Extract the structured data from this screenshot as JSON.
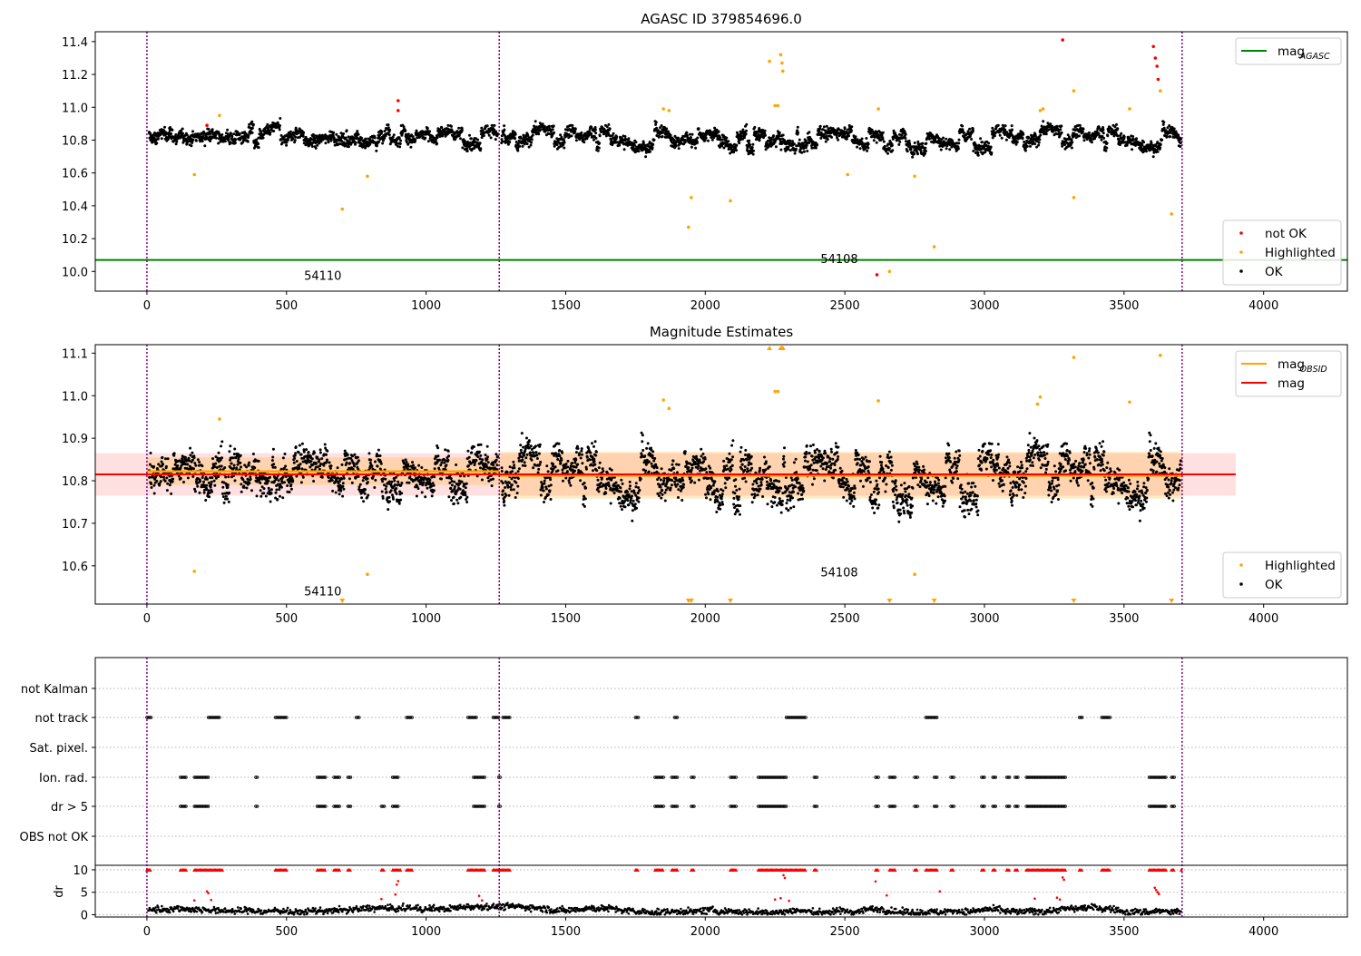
{
  "colors": {
    "ok": "#000000",
    "highlighted": "#ffa500",
    "not_ok": "#ff0000",
    "mag_agasc": "#008000",
    "mag_obsid": "#ffa500",
    "mag": "#ff0000",
    "obsid_boundary": "#800080"
  },
  "chart_data": [
    {
      "type": "scatter",
      "title": "AGASC ID 379854696.0",
      "xlim": [
        -185,
        4300
      ],
      "ylim": [
        9.88,
        11.46
      ],
      "x_ticks": [
        "0",
        "500",
        "1000",
        "1500",
        "2000",
        "2500",
        "3000",
        "3500",
        "4000"
      ],
      "y_ticks": [
        "10.0",
        "10.2",
        "10.4",
        "10.6",
        "10.8",
        "11.0",
        "11.2",
        "11.4"
      ],
      "obsid_boundaries": [
        0,
        1262,
        3708
      ],
      "obsid_labels": [
        {
          "text": "54110",
          "x": 630,
          "y": 9.95
        },
        {
          "text": "54108",
          "x": 2480,
          "y": 10.05
        }
      ],
      "mag_agasc": 10.07,
      "ok_bands": [
        {
          "x": [
            0,
            1262
          ],
          "baseline": 10.82,
          "amplitude": 0.055
        },
        {
          "x": [
            1262,
            3708
          ],
          "baseline": 10.81,
          "amplitude": 0.07
        }
      ],
      "highlighted": [
        {
          "x": 170,
          "y": 10.59
        },
        {
          "x": 260,
          "y": 10.95
        },
        {
          "x": 700,
          "y": 10.38
        },
        {
          "x": 790,
          "y": 10.58
        },
        {
          "x": 1850,
          "y": 10.99
        },
        {
          "x": 1870,
          "y": 10.98
        },
        {
          "x": 1940,
          "y": 10.27
        },
        {
          "x": 1950,
          "y": 10.45
        },
        {
          "x": 2090,
          "y": 10.43
        },
        {
          "x": 2230,
          "y": 11.28
        },
        {
          "x": 2250,
          "y": 11.01
        },
        {
          "x": 2260,
          "y": 11.01
        },
        {
          "x": 2270,
          "y": 11.32
        },
        {
          "x": 2275,
          "y": 11.27
        },
        {
          "x": 2278,
          "y": 11.22
        },
        {
          "x": 2510,
          "y": 10.59
        },
        {
          "x": 2620,
          "y": 10.99
        },
        {
          "x": 2660,
          "y": 10.0
        },
        {
          "x": 2750,
          "y": 10.58
        },
        {
          "x": 2820,
          "y": 10.15
        },
        {
          "x": 3200,
          "y": 10.98
        },
        {
          "x": 3210,
          "y": 10.99
        },
        {
          "x": 3320,
          "y": 11.1
        },
        {
          "x": 3320,
          "y": 10.45
        },
        {
          "x": 3520,
          "y": 10.99
        },
        {
          "x": 3630,
          "y": 11.1
        },
        {
          "x": 3670,
          "y": 10.35
        }
      ],
      "not_ok": [
        {
          "x": 215,
          "y": 10.89
        },
        {
          "x": 900,
          "y": 11.04
        },
        {
          "x": 900,
          "y": 10.98
        },
        {
          "x": 2615,
          "y": 9.98
        },
        {
          "x": 3280,
          "y": 11.41
        },
        {
          "x": 3605,
          "y": 11.37
        },
        {
          "x": 3612,
          "y": 11.3
        },
        {
          "x": 3618,
          "y": 11.25
        },
        {
          "x": 3622,
          "y": 11.17
        }
      ],
      "legends": [
        {
          "placement": "upper right",
          "items": [
            {
              "label": "mag",
              "sub": "AGASC",
              "kind": "line",
              "color_key": "mag_agasc"
            }
          ]
        },
        {
          "placement": "lower right",
          "items": [
            {
              "label": "not OK",
              "kind": "dot",
              "color_key": "not_ok"
            },
            {
              "label": "Highlighted",
              "kind": "dot",
              "color_key": "highlighted"
            },
            {
              "label": "OK",
              "kind": "dot",
              "color_key": "ok"
            }
          ]
        }
      ]
    },
    {
      "type": "scatter",
      "title": "Magnitude Estimates",
      "xlim": [
        -185,
        4300
      ],
      "ylim": [
        10.51,
        11.12
      ],
      "x_ticks": [
        "0",
        "500",
        "1000",
        "1500",
        "2000",
        "2500",
        "3000",
        "3500",
        "4000"
      ],
      "y_ticks": [
        "10.6",
        "10.7",
        "10.8",
        "10.9",
        "11.0",
        "11.1"
      ],
      "obsid_boundaries": [
        0,
        1262,
        3708
      ],
      "obsid_labels": [
        {
          "text": "54110",
          "x": 630,
          "y": 10.53
        },
        {
          "text": "54108",
          "x": 2480,
          "y": 10.575
        }
      ],
      "mag": 10.815,
      "mag_band": [
        10.765,
        10.865
      ],
      "mag_extent": [
        -185,
        3900
      ],
      "mag_obsid": [
        {
          "x": [
            0,
            1262
          ],
          "value": 10.822,
          "band": [
            10.79,
            10.855
          ]
        },
        {
          "x": [
            1262,
            3708
          ],
          "value": 10.812,
          "band": [
            10.758,
            10.868
          ]
        }
      ],
      "highlighted": [
        {
          "x": 170,
          "y": 10.587
        },
        {
          "x": 260,
          "y": 10.945
        },
        {
          "x": 790,
          "y": 10.58
        },
        {
          "x": 1850,
          "y": 10.99
        },
        {
          "x": 1870,
          "y": 10.97
        },
        {
          "x": 2250,
          "y": 11.01
        },
        {
          "x": 2260,
          "y": 11.01
        },
        {
          "x": 2620,
          "y": 10.988
        },
        {
          "x": 2750,
          "y": 10.58
        },
        {
          "x": 3190,
          "y": 10.98
        },
        {
          "x": 3200,
          "y": 10.997
        },
        {
          "x": 3320,
          "y": 11.09
        },
        {
          "x": 3520,
          "y": 10.985
        },
        {
          "x": 3630,
          "y": 11.095
        }
      ],
      "below_range": [
        700,
        1940,
        1950,
        2090,
        2660,
        2820,
        3320,
        3670
      ],
      "above_range": [
        2230,
        2270,
        2275,
        2278
      ],
      "legends": [
        {
          "placement": "upper right",
          "items": [
            {
              "label": "mag",
              "sub": "OBSID",
              "kind": "line",
              "color_key": "mag_obsid"
            },
            {
              "label": "mag",
              "kind": "line",
              "color_key": "mag"
            }
          ]
        },
        {
          "placement": "lower right",
          "items": [
            {
              "label": "Highlighted",
              "kind": "dot",
              "color_key": "highlighted"
            },
            {
              "label": "OK",
              "kind": "dot",
              "color_key": "ok"
            }
          ]
        }
      ]
    },
    {
      "type": "scatter",
      "title": "",
      "xlim": [
        -185,
        4300
      ],
      "x_ticks": [
        "0",
        "500",
        "1000",
        "1500",
        "2000",
        "2500",
        "3000",
        "3500",
        "4000"
      ],
      "obsid_boundaries": [
        0,
        1262,
        3708
      ],
      "flag_rows": [
        "not Kalman",
        "not track",
        "Sat. pixel.",
        "Ion. rad.",
        "dr > 5",
        "OBS not OK"
      ],
      "flag_intervals": {
        "not track": [
          [
            0,
            15
          ],
          [
            220,
            260
          ],
          [
            460,
            500
          ],
          [
            750,
            760
          ],
          [
            930,
            950
          ],
          [
            1150,
            1180
          ],
          [
            1240,
            1260
          ],
          [
            1275,
            1300
          ],
          [
            1750,
            1760
          ],
          [
            1890,
            1900
          ],
          [
            2290,
            2360
          ],
          [
            2790,
            2830
          ],
          [
            3340,
            3350
          ],
          [
            3420,
            3450
          ]
        ],
        "Ion. rad.": [
          [
            120,
            140
          ],
          [
            170,
            220
          ],
          [
            390,
            395
          ],
          [
            610,
            640
          ],
          [
            670,
            690
          ],
          [
            720,
            730
          ],
          [
            880,
            900
          ],
          [
            1170,
            1210
          ],
          [
            1260,
            1265
          ],
          [
            1820,
            1850
          ],
          [
            1880,
            1900
          ],
          [
            1950,
            1960
          ],
          [
            2090,
            2110
          ],
          [
            2190,
            2290
          ],
          [
            2390,
            2400
          ],
          [
            2610,
            2620
          ],
          [
            2660,
            2680
          ],
          [
            2750,
            2760
          ],
          [
            2820,
            2830
          ],
          [
            2880,
            2890
          ],
          [
            2990,
            3000
          ],
          [
            3030,
            3040
          ],
          [
            3080,
            3090
          ],
          [
            3110,
            3120
          ],
          [
            3150,
            3290
          ],
          [
            3590,
            3650
          ],
          [
            3670,
            3680
          ]
        ],
        "dr > 5": [
          [
            120,
            140
          ],
          [
            170,
            220
          ],
          [
            390,
            395
          ],
          [
            610,
            640
          ],
          [
            670,
            690
          ],
          [
            720,
            730
          ],
          [
            840,
            850
          ],
          [
            880,
            900
          ],
          [
            1170,
            1210
          ],
          [
            1260,
            1265
          ],
          [
            1820,
            1850
          ],
          [
            1880,
            1900
          ],
          [
            1950,
            1960
          ],
          [
            2090,
            2110
          ],
          [
            2190,
            2290
          ],
          [
            2390,
            2400
          ],
          [
            2610,
            2620
          ],
          [
            2660,
            2680
          ],
          [
            2750,
            2760
          ],
          [
            2820,
            2830
          ],
          [
            2880,
            2890
          ],
          [
            2990,
            3000
          ],
          [
            3030,
            3040
          ],
          [
            3080,
            3090
          ],
          [
            3110,
            3120
          ],
          [
            3150,
            3290
          ],
          [
            3590,
            3650
          ],
          [
            3670,
            3680
          ]
        ]
      },
      "dr": {
        "ylabel": "dr",
        "y_ticks": [
          "0",
          "5",
          "10"
        ],
        "ylim": [
          -0.5,
          10.8
        ],
        "clip_value": 10,
        "clipped_intervals": [
          [
            0,
            15
          ],
          [
            120,
            140
          ],
          [
            170,
            270
          ],
          [
            460,
            500
          ],
          [
            610,
            640
          ],
          [
            670,
            690
          ],
          [
            720,
            730
          ],
          [
            840,
            850
          ],
          [
            880,
            910
          ],
          [
            930,
            950
          ],
          [
            1150,
            1210
          ],
          [
            1240,
            1300
          ],
          [
            1750,
            1760
          ],
          [
            1820,
            1850
          ],
          [
            1880,
            1900
          ],
          [
            1950,
            1960
          ],
          [
            2090,
            2110
          ],
          [
            2190,
            2360
          ],
          [
            2390,
            2400
          ],
          [
            2610,
            2620
          ],
          [
            2660,
            2680
          ],
          [
            2750,
            2760
          ],
          [
            2790,
            2830
          ],
          [
            2880,
            2890
          ],
          [
            2990,
            3000
          ],
          [
            3030,
            3040
          ],
          [
            3080,
            3090
          ],
          [
            3110,
            3120
          ],
          [
            3150,
            3290
          ],
          [
            3340,
            3350
          ],
          [
            3420,
            3450
          ],
          [
            3590,
            3650
          ],
          [
            3670,
            3680
          ],
          [
            3705,
            3708
          ]
        ],
        "spikes": [
          {
            "x": 170,
            "y": 3.2
          },
          {
            "x": 215,
            "y": 5.2
          },
          {
            "x": 220,
            "y": 4.8
          },
          {
            "x": 230,
            "y": 3.3
          },
          {
            "x": 840,
            "y": 3.5
          },
          {
            "x": 890,
            "y": 4.5
          },
          {
            "x": 895,
            "y": 6.7
          },
          {
            "x": 900,
            "y": 7.5
          },
          {
            "x": 1190,
            "y": 4.2
          },
          {
            "x": 1200,
            "y": 3.2
          },
          {
            "x": 2250,
            "y": 3.4
          },
          {
            "x": 2270,
            "y": 3.7
          },
          {
            "x": 2280,
            "y": 8.8
          },
          {
            "x": 2285,
            "y": 8.2
          },
          {
            "x": 2300,
            "y": 3.1
          },
          {
            "x": 2610,
            "y": 7.4
          },
          {
            "x": 2650,
            "y": 4.3
          },
          {
            "x": 2840,
            "y": 5.2
          },
          {
            "x": 3180,
            "y": 3.6
          },
          {
            "x": 3260,
            "y": 3.8
          },
          {
            "x": 3270,
            "y": 3.4
          },
          {
            "x": 3280,
            "y": 8.3
          },
          {
            "x": 3285,
            "y": 7.8
          },
          {
            "x": 3610,
            "y": 6.0
          },
          {
            "x": 3615,
            "y": 5.5
          },
          {
            "x": 3620,
            "y": 5.0
          },
          {
            "x": 3625,
            "y": 4.6
          }
        ],
        "baseline": 1.0
      }
    }
  ]
}
